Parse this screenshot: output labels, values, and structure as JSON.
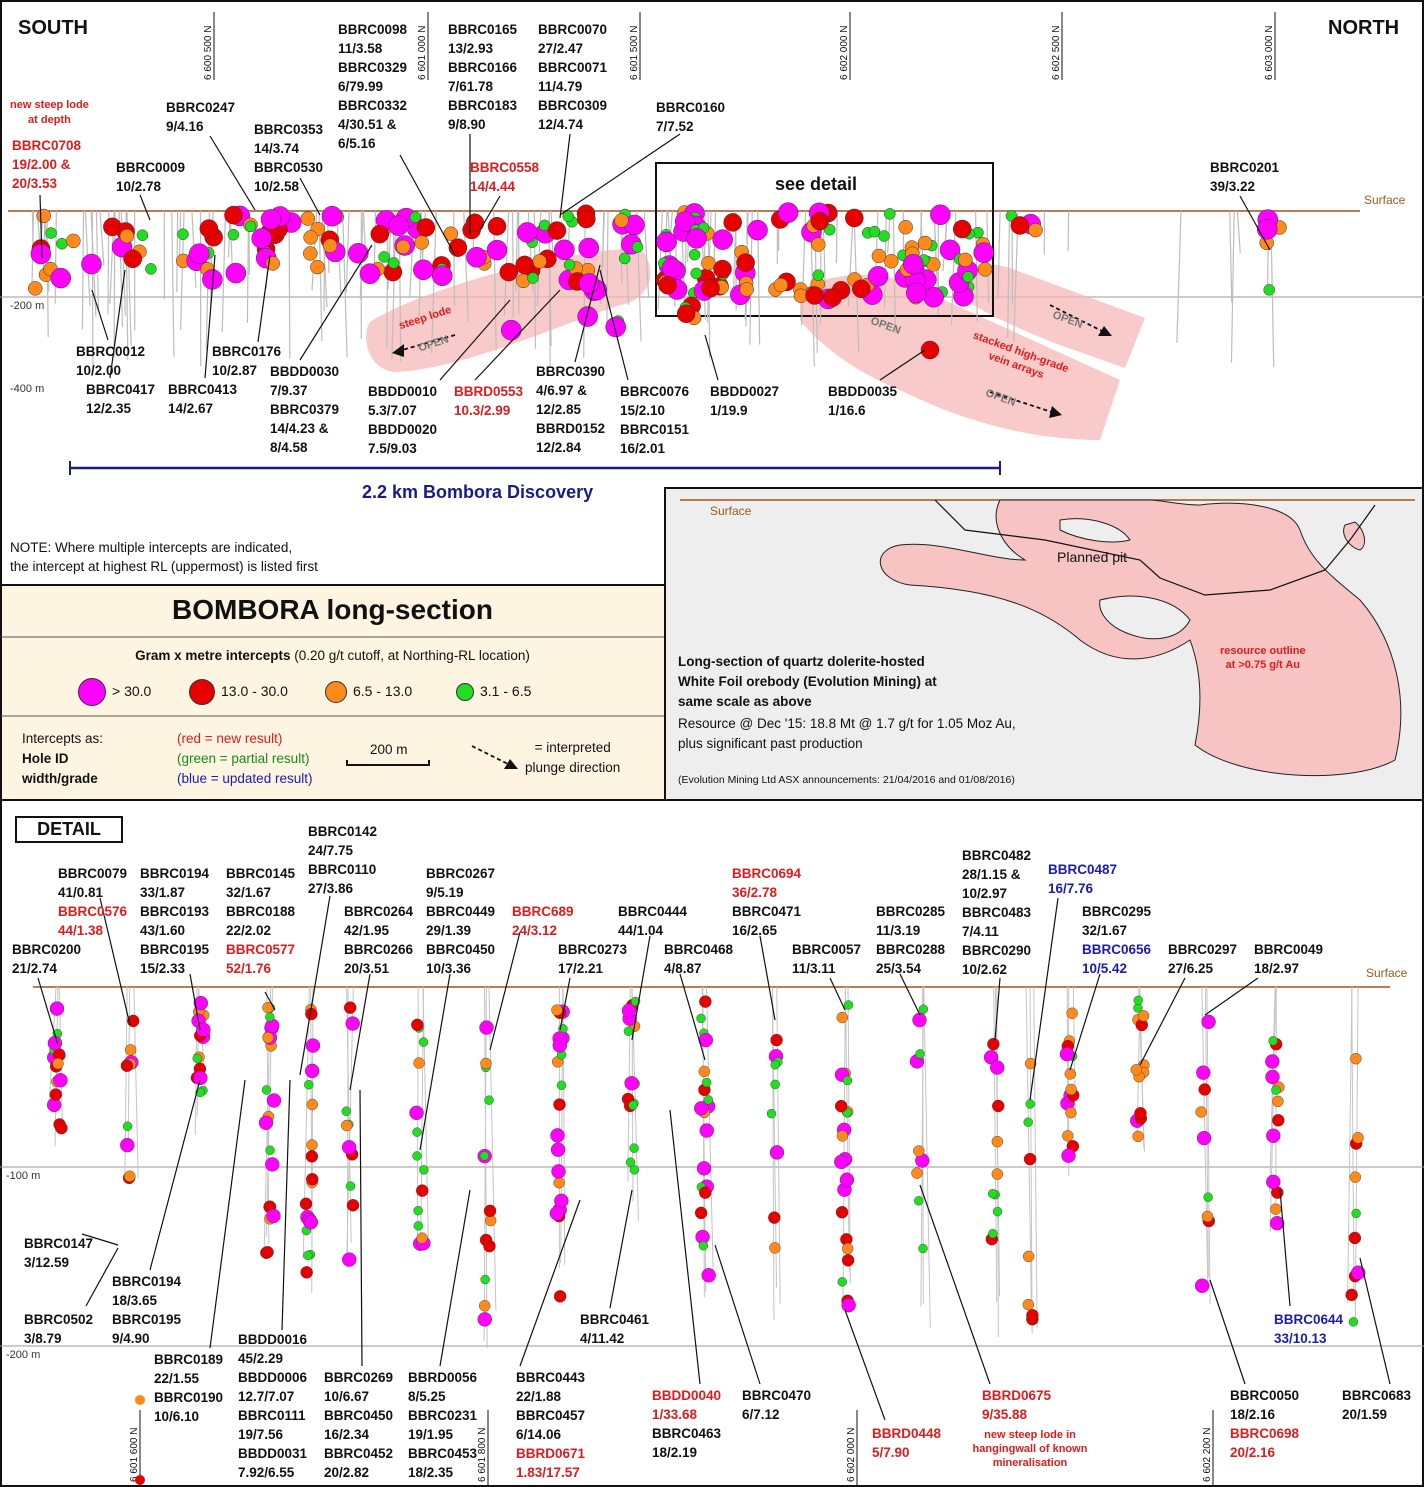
{
  "top": {
    "south": "SOUTH",
    "north": "NORTH",
    "surface": "Surface",
    "depth_200": "-200 m",
    "depth_400": "-400 m",
    "see_detail": "see detail",
    "scale_bar": "2.2 km Bombora Discovery",
    "northings": [
      "6 600 500 N",
      "6 601 000 N",
      "6 601 500 N",
      "6 602 000 N",
      "6 602 500 N",
      "6 603 000 N"
    ],
    "annotations": {
      "new_steep_lode": "new steep lode\nat depth",
      "steep_lode": "steep lode",
      "open": "OPEN",
      "stacked": "stacked high-grade\nvein arrays"
    },
    "labels": [
      {
        "id": "BBRC0708",
        "lines": [
          "BBRC0708",
          "19/2.00 &",
          "20/3.53"
        ],
        "color": "red"
      },
      {
        "id": "BBRC0009",
        "lines": [
          "BBRC0009",
          "10/2.78"
        ]
      },
      {
        "id": "BBRC0247",
        "lines": [
          "BBRC0247",
          "9/4.16"
        ]
      },
      {
        "id": "BBRC0353",
        "lines": [
          "BBRC0353",
          "14/3.74",
          "BBRC0530",
          "10/2.58"
        ]
      },
      {
        "id": "BBRC0098",
        "lines": [
          "BBRC0098",
          "11/3.58",
          "BBRC0329",
          "6/79.99",
          "BBRC0332",
          "4/30.51 &",
          "6/5.16"
        ]
      },
      {
        "id": "BBRC0165",
        "lines": [
          "BBRC0165",
          "13/2.93",
          "BBRC0166",
          "7/61.78",
          "BBRC0183",
          "9/8.90"
        ]
      },
      {
        "id": "BBRC0558",
        "lines": [
          "BBRC0558",
          "14/4.44"
        ],
        "color": "red"
      },
      {
        "id": "BBRC0070",
        "lines": [
          "BBRC0070",
          "27/2.47",
          "BBRC0071",
          "11/4.79",
          "BBRC0309",
          "12/4.74"
        ]
      },
      {
        "id": "BBRC0160",
        "lines": [
          "BBRC0160",
          "7/7.52"
        ]
      },
      {
        "id": "BBRC0201",
        "lines": [
          "BBRC0201",
          "39/3.22"
        ]
      },
      {
        "id": "BBRC0012",
        "lines": [
          "BBRC0012",
          "10/2.00"
        ]
      },
      {
        "id": "BBRC0417",
        "lines": [
          "BBRC0417",
          "12/2.35"
        ]
      },
      {
        "id": "BBRC0413",
        "lines": [
          "BBRC0413",
          "14/2.67"
        ]
      },
      {
        "id": "BBRC0176",
        "lines": [
          "BBRC0176",
          "10/2.87"
        ]
      },
      {
        "id": "BBDD0030",
        "lines": [
          "BBDD0030",
          "7/9.37",
          "BBRC0379",
          "14/4.23 &",
          "8/4.58"
        ]
      },
      {
        "id": "BBDD0010",
        "lines": [
          "BBDD0010",
          "5.3/7.07",
          "BBDD0020",
          "7.5/9.03"
        ]
      },
      {
        "id": "BBRD0553",
        "lines": [
          "BBRD0553",
          "10.3/2.99"
        ],
        "color": "red"
      },
      {
        "id": "BBRC0390",
        "lines": [
          "BBRC0390",
          "4/6.97 &",
          "12/2.85",
          "BBRD0152",
          "12/2.84"
        ]
      },
      {
        "id": "BBRC0076",
        "lines": [
          "BBRC0076",
          "15/2.10",
          "BBRC0151",
          "16/2.01"
        ]
      },
      {
        "id": "BBDD0027",
        "lines": [
          "BBDD0027",
          "1/19.9"
        ]
      },
      {
        "id": "BBDD0035",
        "lines": [
          "BBDD0035",
          "1/16.6"
        ]
      }
    ]
  },
  "legend": {
    "note": "NOTE: Where multiple intercepts are indicated,\nthe intercept at highest RL (uppermost) is listed first",
    "title": "BOMBORA long-section",
    "gram_title": "Gram x metre intercepts",
    "gram_sub": " (0.20 g/t cutoff, at Northing-RL location)",
    "classes": [
      {
        "label": "> 30.0",
        "color": "#ff00ff"
      },
      {
        "label": "13.0 - 30.0",
        "color": "#e60000"
      },
      {
        "label": "6.5 - 13.0",
        "color": "#ff8a1c"
      },
      {
        "label": "3.1 - 6.5",
        "color": "#22dd22"
      }
    ],
    "intercepts_as": "Intercepts as:",
    "hole_id": "Hole ID",
    "width_grade": "width/grade",
    "red_new": "(red = new result)",
    "green_partial": "(green = partial result)",
    "blue_updated": "(blue = updated result)",
    "scale": "200 m",
    "plunge": "= interpreted\nplunge direction"
  },
  "whitefoil": {
    "surface": "Surface",
    "planned_pit": "Planned pit",
    "resource": "resource outline\nat >0.75 g/t Au",
    "desc_bold": "Long-section of quartz dolerite-hosted\nWhite Foil orebody (Evolution Mining) at\nsame scale as above",
    "desc": "Resource @ Dec '15: 18.8 Mt @ 1.7 g/t for 1.05 Moz Au,\nplus significant past production",
    "source": "(Evolution Mining Ltd ASX announcements: 21/04/2016 and 01/08/2016)"
  },
  "detail": {
    "title": "DETAIL",
    "surface": "Surface",
    "depth_100": "-100 m",
    "depth_200": "-200 m",
    "northings": [
      "6 601 600 N",
      "6 601 800 N",
      "6 602 000 N",
      "6 602 200 N"
    ],
    "steep_note": "new steep lode in\nhangingwall of known\nmineralisation",
    "labels": [
      {
        "id": "BBRC0200",
        "lines": [
          "BBRC0200",
          "21/2.74"
        ]
      },
      {
        "id": "BBRC0079",
        "lines": [
          "BBRC0079",
          "41/0.81",
          "BBRC0576",
          "44/1.38"
        ],
        "red": [
          2,
          3
        ]
      },
      {
        "id": "BBRC0194a",
        "lines": [
          "BBRC0194",
          "33/1.87",
          "BBRC0193",
          "43/1.60",
          "BBRC0195",
          "15/2.33"
        ]
      },
      {
        "id": "BBRC0145",
        "lines": [
          "BBRC0145",
          "32/1.67",
          "BBRC0188",
          "22/2.02",
          "BBRC0577",
          "52/1.76"
        ],
        "red": [
          4,
          5
        ]
      },
      {
        "id": "BBRC0142",
        "lines": [
          "BBRC0142",
          "24/7.75",
          "BBRC0110",
          "27/3.86"
        ]
      },
      {
        "id": "BBRC0264",
        "lines": [
          "BBRC0264",
          "42/1.95",
          "BBRC0266",
          "20/3.51"
        ]
      },
      {
        "id": "BBRC0267",
        "lines": [
          "BBRC0267",
          "9/5.19",
          "BBRC0449",
          "29/1.39",
          "BBRC0450",
          "10/3.36"
        ]
      },
      {
        "id": "BBRC689",
        "lines": [
          "BBRC689",
          "24/3.12"
        ],
        "color": "red"
      },
      {
        "id": "BBRC0273",
        "lines": [
          "BBRC0273",
          "17/2.21"
        ]
      },
      {
        "id": "BBRC0444",
        "lines": [
          "BBRC0444",
          "44/1.04"
        ]
      },
      {
        "id": "BBRC0468",
        "lines": [
          "BBRC0468",
          "4/8.87"
        ]
      },
      {
        "id": "BBRC0694",
        "lines": [
          "BBRC0694",
          "36/2.78",
          "BBRC0471",
          "16/2.65"
        ],
        "red": [
          0,
          1
        ]
      },
      {
        "id": "BBRC0057",
        "lines": [
          "BBRC0057",
          "11/3.11"
        ]
      },
      {
        "id": "BBRC0285",
        "lines": [
          "BBRC0285",
          "11/3.19",
          "BBRC0288",
          "25/3.54"
        ]
      },
      {
        "id": "BBRC0482",
        "lines": [
          "BBRC0482",
          "28/1.15 &",
          "10/2.97",
          "BBRC0483",
          "7/4.11",
          "BBRC0290",
          "10/2.62"
        ]
      },
      {
        "id": "BBRC0487",
        "lines": [
          "BBRC0487",
          "16/7.76"
        ],
        "color": "blue"
      },
      {
        "id": "BBRC0295",
        "lines": [
          "BBRC0295",
          "32/1.67",
          "BBRC0656",
          "10/5.42"
        ],
        "blue": [
          2,
          3
        ]
      },
      {
        "id": "BBRC0297",
        "lines": [
          "BBRC0297",
          "27/6.25"
        ]
      },
      {
        "id": "BBRC0049",
        "lines": [
          "BBRC0049",
          "18/2.97"
        ]
      },
      {
        "id": "BBRC0147",
        "lines": [
          "BBRC0147",
          "3/12.59"
        ]
      },
      {
        "id": "BBRC0502",
        "lines": [
          "BBRC0502",
          "3/8.79"
        ]
      },
      {
        "id": "BBRC0194b",
        "lines": [
          "BBRC0194",
          "18/3.65",
          "BBRC0195",
          "9/4.90"
        ]
      },
      {
        "id": "BBRC0189",
        "lines": [
          "BBRC0189",
          "22/1.55",
          "BBRC0190",
          "10/6.10"
        ]
      },
      {
        "id": "BBDD0016",
        "lines": [
          "BBDD0016",
          "45/2.29",
          "BBDD0006",
          "12.7/7.07",
          "BBRC0111",
          "19/7.56",
          "BBDD0031",
          "7.92/6.55"
        ]
      },
      {
        "id": "BBRC0269",
        "lines": [
          "BBRC0269",
          "10/6.67",
          "BBRC0450",
          "16/2.34",
          "BBRC0452",
          "20/2.82"
        ]
      },
      {
        "id": "BBRD0056",
        "lines": [
          "BBRD0056",
          "8/5.25",
          "BBRC0231",
          "19/1.95",
          "BBRC0453",
          "18/2.35"
        ]
      },
      {
        "id": "BBRC0443",
        "lines": [
          "BBRC0443",
          "22/1.88",
          "BBRC0457",
          "6/14.06",
          "BBRD0671",
          "1.83/17.57"
        ],
        "red": [
          4,
          5
        ]
      },
      {
        "id": "BBRC0461",
        "lines": [
          "BBRC0461",
          "4/11.42"
        ]
      },
      {
        "id": "BBDD0040",
        "lines": [
          "BBDD0040",
          "1/33.68",
          "BBRC0463",
          "18/2.19"
        ],
        "red": [
          0,
          1
        ]
      },
      {
        "id": "BBRC0470",
        "lines": [
          "BBRC0470",
          "6/7.12"
        ]
      },
      {
        "id": "BBRD0448",
        "lines": [
          "BBRD0448",
          "5/7.90"
        ],
        "color": "red"
      },
      {
        "id": "BBRD0675",
        "lines": [
          "BBRD0675",
          "9/35.88"
        ],
        "color": "red"
      },
      {
        "id": "BBRC0644",
        "lines": [
          "BBRC0644",
          "33/10.13"
        ],
        "color": "blue"
      },
      {
        "id": "BBRC0050",
        "lines": [
          "BBRC0050",
          "18/2.16",
          "BBRC0698",
          "20/2.16"
        ],
        "red": [
          2,
          3
        ]
      },
      {
        "id": "BBRC0683",
        "lines": [
          "BBRC0683",
          "20/1.59"
        ]
      }
    ]
  }
}
